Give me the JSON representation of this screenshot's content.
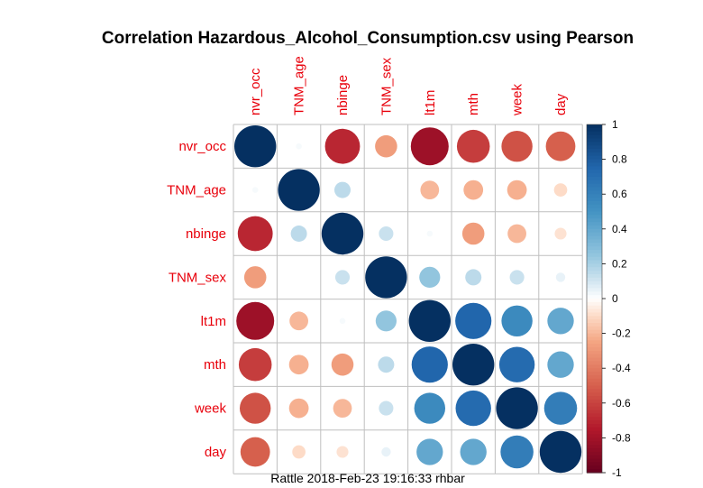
{
  "chart_data": {
    "type": "heatmap",
    "title": "Correlation Hazardous_Alcohol_Consumption.csv using Pearson",
    "variables": [
      "nvr_occ",
      "TNM_age",
      "nbinge",
      "TNM_sex",
      "lt1m",
      "mth",
      "week",
      "day"
    ],
    "matrix": [
      [
        1.0,
        0.02,
        -0.7,
        -0.28,
        -0.82,
        -0.62,
        -0.55,
        -0.5
      ],
      [
        0.02,
        1.0,
        0.15,
        0.0,
        -0.2,
        -0.22,
        -0.22,
        -0.1
      ],
      [
        -0.7,
        0.15,
        1.0,
        0.12,
        0.02,
        -0.28,
        -0.2,
        -0.08
      ],
      [
        -0.28,
        0.0,
        0.12,
        1.0,
        0.25,
        0.15,
        0.12,
        0.05
      ],
      [
        -0.82,
        -0.2,
        0.02,
        0.25,
        1.0,
        0.75,
        0.55,
        0.4
      ],
      [
        -0.62,
        -0.22,
        -0.28,
        0.15,
        0.75,
        1.0,
        0.72,
        0.4
      ],
      [
        -0.55,
        -0.22,
        -0.2,
        0.12,
        0.55,
        0.72,
        1.0,
        0.62
      ],
      [
        -0.5,
        -0.1,
        -0.08,
        0.05,
        0.4,
        0.4,
        0.62,
        1.0
      ]
    ],
    "colorbar": {
      "range": [
        -1,
        1
      ],
      "ticks": [
        "1",
        "0.8",
        "0.6",
        "0.4",
        "0.2",
        "0",
        "-0.2",
        "-0.4",
        "-0.6",
        "-0.8",
        "-1"
      ]
    },
    "footer": "Rattle 2018-Feb-23 19:16:33 rhbar"
  },
  "colors": {
    "label": "#e8000b",
    "grid": "#bfbfbf",
    "negative_strong": "#67001f",
    "neutral": "#ffffff",
    "positive_strong": "#053061"
  }
}
